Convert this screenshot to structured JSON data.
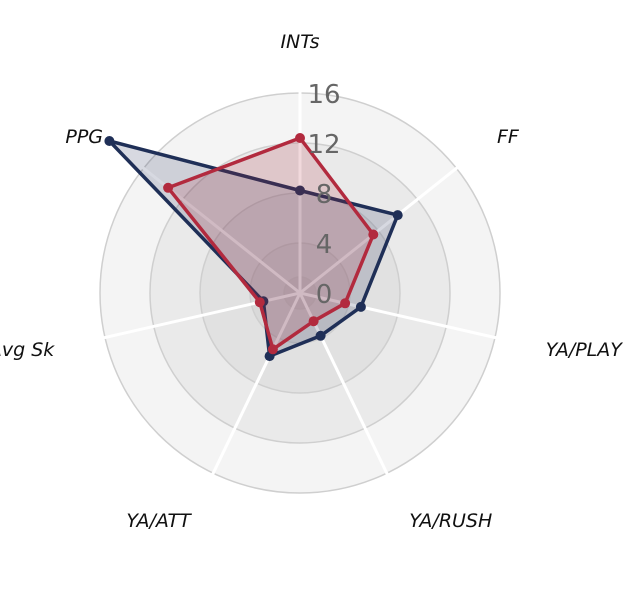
{
  "chart_data": {
    "type": "radar",
    "axes": [
      "INTs",
      "FF",
      "YA/PLAY",
      "YA/RUSH",
      "YA/ATT",
      "Avg Sk",
      "PPG"
    ],
    "r_ticks": [
      0,
      4,
      8,
      12,
      16
    ],
    "r_range": [
      0,
      16
    ],
    "grid": true,
    "legend": "none",
    "series": [
      {
        "color": "#1f2f57",
        "values": [
          8.2,
          10.0,
          5.0,
          3.8,
          5.6,
          3.0,
          19.5
        ]
      },
      {
        "color": "#b22a3e",
        "values": [
          12.4,
          7.5,
          3.7,
          2.5,
          5.0,
          3.3,
          13.5
        ]
      }
    ]
  }
}
